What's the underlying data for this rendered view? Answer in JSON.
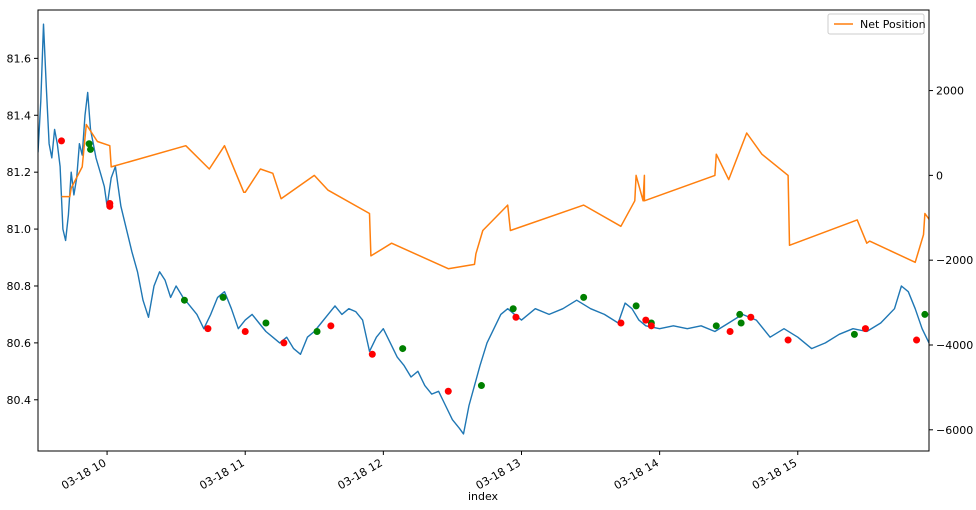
{
  "chart_data": {
    "type": "line",
    "xlabel": "index",
    "x_ticks": [
      "03-18 10",
      "03-18 11",
      "03-18 12",
      "03-18 13",
      "03-18 14",
      "03-18 15"
    ],
    "x_tick_hours": [
      10,
      11,
      12,
      13,
      14,
      15
    ],
    "x_range": [
      9.5,
      15.95
    ],
    "y_left": {
      "range": [
        80.22,
        81.77
      ],
      "ticks": [
        "80.4",
        "80.6",
        "80.8",
        "81.0",
        "81.2",
        "81.4",
        "81.6"
      ]
    },
    "y_right": {
      "range": [
        -6500,
        3900
      ],
      "ticks": [
        "−6000",
        "−4000",
        "−2000",
        "0",
        "2000"
      ]
    },
    "legend": {
      "position": "top-right",
      "entries": [
        "Net Position"
      ]
    },
    "colors": {
      "price": "#1f77b4",
      "net_position": "#ff7f0e",
      "buy": "#008000",
      "sell": "#ff0000"
    },
    "price_series": [
      [
        9.5,
        81.27
      ],
      [
        9.52,
        81.45
      ],
      [
        9.54,
        81.72
      ],
      [
        9.56,
        81.5
      ],
      [
        9.58,
        81.3
      ],
      [
        9.6,
        81.25
      ],
      [
        9.62,
        81.35
      ],
      [
        9.64,
        81.3
      ],
      [
        9.66,
        81.22
      ],
      [
        9.68,
        81.0
      ],
      [
        9.7,
        80.96
      ],
      [
        9.72,
        81.05
      ],
      [
        9.74,
        81.2
      ],
      [
        9.76,
        81.12
      ],
      [
        9.78,
        81.18
      ],
      [
        9.8,
        81.3
      ],
      [
        9.82,
        81.26
      ],
      [
        9.84,
        81.4
      ],
      [
        9.86,
        81.48
      ],
      [
        9.88,
        81.35
      ],
      [
        9.9,
        81.3
      ],
      [
        9.92,
        81.25
      ],
      [
        9.95,
        81.2
      ],
      [
        9.98,
        81.15
      ],
      [
        10.0,
        81.08
      ],
      [
        10.03,
        81.18
      ],
      [
        10.06,
        81.22
      ],
      [
        10.08,
        81.15
      ],
      [
        10.1,
        81.08
      ],
      [
        10.14,
        81.0
      ],
      [
        10.18,
        80.92
      ],
      [
        10.22,
        80.85
      ],
      [
        10.26,
        80.75
      ],
      [
        10.3,
        80.69
      ],
      [
        10.34,
        80.8
      ],
      [
        10.38,
        80.85
      ],
      [
        10.42,
        80.82
      ],
      [
        10.46,
        80.76
      ],
      [
        10.5,
        80.8
      ],
      [
        10.55,
        80.76
      ],
      [
        10.6,
        80.73
      ],
      [
        10.65,
        80.7
      ],
      [
        10.7,
        80.65
      ],
      [
        10.75,
        80.7
      ],
      [
        10.8,
        80.76
      ],
      [
        10.85,
        80.78
      ],
      [
        10.9,
        80.72
      ],
      [
        10.95,
        80.65
      ],
      [
        11.0,
        80.68
      ],
      [
        11.05,
        80.7
      ],
      [
        11.1,
        80.67
      ],
      [
        11.15,
        80.64
      ],
      [
        11.2,
        80.62
      ],
      [
        11.25,
        80.6
      ],
      [
        11.3,
        80.62
      ],
      [
        11.35,
        80.58
      ],
      [
        11.4,
        80.56
      ],
      [
        11.45,
        80.62
      ],
      [
        11.5,
        80.64
      ],
      [
        11.55,
        80.67
      ],
      [
        11.6,
        80.7
      ],
      [
        11.65,
        80.73
      ],
      [
        11.7,
        80.7
      ],
      [
        11.75,
        80.72
      ],
      [
        11.8,
        80.71
      ],
      [
        11.85,
        80.68
      ],
      [
        11.9,
        80.57
      ],
      [
        11.95,
        80.62
      ],
      [
        12.0,
        80.65
      ],
      [
        12.05,
        80.6
      ],
      [
        12.1,
        80.55
      ],
      [
        12.15,
        80.52
      ],
      [
        12.2,
        80.48
      ],
      [
        12.25,
        80.5
      ],
      [
        12.3,
        80.45
      ],
      [
        12.35,
        80.42
      ],
      [
        12.4,
        80.43
      ],
      [
        12.45,
        80.38
      ],
      [
        12.5,
        80.33
      ],
      [
        12.55,
        80.3
      ],
      [
        12.58,
        80.28
      ],
      [
        12.62,
        80.38
      ],
      [
        12.66,
        80.45
      ],
      [
        12.7,
        80.52
      ],
      [
        12.75,
        80.6
      ],
      [
        12.8,
        80.65
      ],
      [
        12.85,
        80.7
      ],
      [
        12.9,
        80.72
      ],
      [
        12.95,
        80.7
      ],
      [
        13.0,
        80.68
      ],
      [
        13.1,
        80.72
      ],
      [
        13.2,
        80.7
      ],
      [
        13.3,
        80.72
      ],
      [
        13.4,
        80.75
      ],
      [
        13.5,
        80.72
      ],
      [
        13.6,
        80.7
      ],
      [
        13.7,
        80.67
      ],
      [
        13.75,
        80.74
      ],
      [
        13.8,
        80.72
      ],
      [
        13.85,
        80.68
      ],
      [
        13.9,
        80.66
      ],
      [
        14.0,
        80.65
      ],
      [
        14.1,
        80.66
      ],
      [
        14.2,
        80.65
      ],
      [
        14.3,
        80.66
      ],
      [
        14.4,
        80.64
      ],
      [
        14.5,
        80.67
      ],
      [
        14.6,
        80.7
      ],
      [
        14.7,
        80.68
      ],
      [
        14.8,
        80.62
      ],
      [
        14.9,
        80.65
      ],
      [
        15.0,
        80.62
      ],
      [
        15.1,
        80.58
      ],
      [
        15.2,
        80.6
      ],
      [
        15.3,
        80.63
      ],
      [
        15.4,
        80.65
      ],
      [
        15.5,
        80.64
      ],
      [
        15.6,
        80.67
      ],
      [
        15.7,
        80.72
      ],
      [
        15.75,
        80.8
      ],
      [
        15.8,
        80.78
      ],
      [
        15.85,
        80.72
      ],
      [
        15.9,
        80.65
      ],
      [
        15.95,
        80.6
      ]
    ],
    "net_position": [
      [
        9.67,
        -500
      ],
      [
        9.73,
        -500
      ],
      [
        9.74,
        -300
      ],
      [
        9.82,
        200
      ],
      [
        9.85,
        1200
      ],
      [
        9.93,
        800
      ],
      [
        10.02,
        700
      ],
      [
        10.03,
        200
      ],
      [
        10.57,
        700
      ],
      [
        10.74,
        150
      ],
      [
        10.85,
        700
      ],
      [
        10.99,
        -400
      ],
      [
        11.0,
        -400
      ],
      [
        11.11,
        150
      ],
      [
        11.2,
        50
      ],
      [
        11.26,
        -550
      ],
      [
        11.5,
        0
      ],
      [
        11.6,
        -350
      ],
      [
        11.9,
        -900
      ],
      [
        11.91,
        -1900
      ],
      [
        12.06,
        -1600
      ],
      [
        12.47,
        -2200
      ],
      [
        12.66,
        -2100
      ],
      [
        12.67,
        -1850
      ],
      [
        12.72,
        -1300
      ],
      [
        12.9,
        -700
      ],
      [
        12.92,
        -1300
      ],
      [
        13.45,
        -700
      ],
      [
        13.72,
        -1200
      ],
      [
        13.82,
        -600
      ],
      [
        13.83,
        0
      ],
      [
        13.88,
        -600
      ],
      [
        13.89,
        0
      ],
      [
        13.89,
        -600
      ],
      [
        14.4,
        0
      ],
      [
        14.41,
        500
      ],
      [
        14.5,
        -100
      ],
      [
        14.63,
        1000
      ],
      [
        14.74,
        500
      ],
      [
        14.93,
        0
      ],
      [
        14.94,
        -1650
      ],
      [
        15.43,
        -1050
      ],
      [
        15.5,
        -1600
      ],
      [
        15.52,
        -1550
      ],
      [
        15.85,
        -2050
      ],
      [
        15.91,
        -1400
      ],
      [
        15.92,
        -900
      ],
      [
        16.03,
        -1400
      ],
      [
        16.04,
        -1900
      ]
    ],
    "buy_markers": [
      [
        9.87,
        81.3
      ],
      [
        9.88,
        81.28
      ],
      [
        10.56,
        80.75
      ],
      [
        10.84,
        80.76
      ],
      [
        11.15,
        80.67
      ],
      [
        11.52,
        80.64
      ],
      [
        12.14,
        80.58
      ],
      [
        12.71,
        80.45
      ],
      [
        12.94,
        80.72
      ],
      [
        13.45,
        80.76
      ],
      [
        13.83,
        80.73
      ],
      [
        13.94,
        80.67
      ],
      [
        14.41,
        80.66
      ],
      [
        14.58,
        80.7
      ],
      [
        14.59,
        80.67
      ],
      [
        15.41,
        80.63
      ],
      [
        15.92,
        80.7
      ]
    ],
    "sell_markers": [
      [
        9.67,
        81.31
      ],
      [
        10.02,
        81.09
      ],
      [
        10.02,
        81.08
      ],
      [
        10.73,
        80.65
      ],
      [
        11.0,
        80.64
      ],
      [
        11.28,
        80.6
      ],
      [
        11.62,
        80.66
      ],
      [
        11.92,
        80.56
      ],
      [
        12.47,
        80.43
      ],
      [
        12.96,
        80.69
      ],
      [
        13.72,
        80.67
      ],
      [
        13.9,
        80.68
      ],
      [
        13.94,
        80.66
      ],
      [
        14.51,
        80.64
      ],
      [
        14.66,
        80.69
      ],
      [
        14.93,
        80.61
      ],
      [
        15.49,
        80.65
      ],
      [
        15.86,
        80.61
      ],
      [
        16.03,
        80.69
      ]
    ]
  }
}
